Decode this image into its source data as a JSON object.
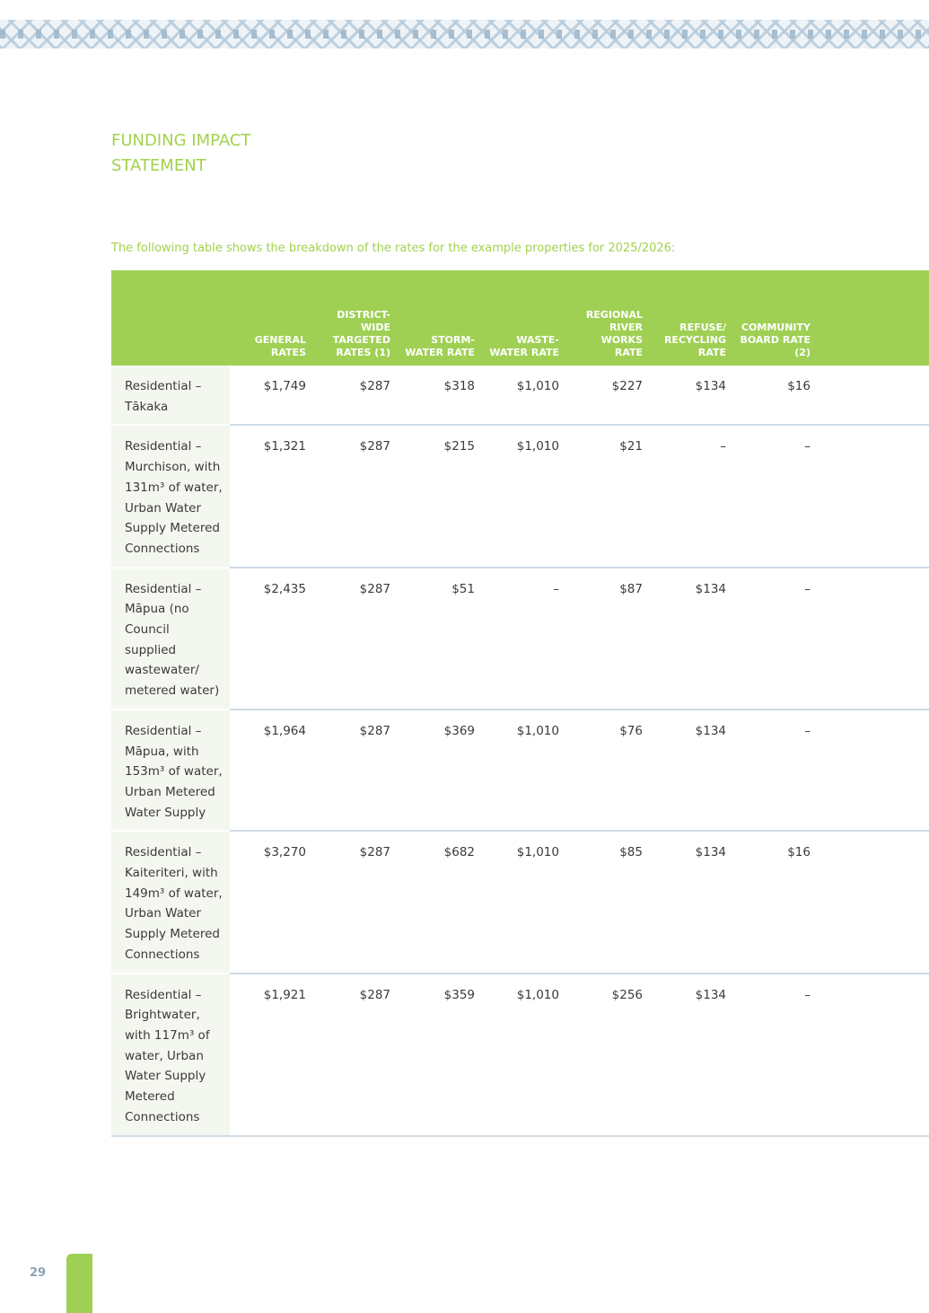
{
  "header": {
    "title_line1": "FUNDING IMPACT",
    "title_line2": "STATEMENT"
  },
  "intro": "The following table shows the breakdown of the rates for the example properties for 2025/2026:",
  "table": {
    "columns": [
      "GENERAL RATES",
      "DISTRICT-WIDE TARGETED RATES (1)",
      "STORM-WATER RATE",
      "WASTE-WATER RATE",
      "REGIONAL RIVER WORKS RATE",
      "REFUSE/ RECYCLING RATE",
      "COMMUNITY BOARD RATE (2)"
    ],
    "rows": [
      {
        "property": "Residential – Tākaka",
        "values": [
          "$1,749",
          "$287",
          "$318",
          "$1,010",
          "$227",
          "$134",
          "$16"
        ]
      },
      {
        "property": "Residential – Murchison, with 131m³ of water, Urban Water Supply Metered Connections",
        "values": [
          "$1,321",
          "$287",
          "$215",
          "$1,010",
          "$21",
          "–",
          "–"
        ]
      },
      {
        "property": "Residential – Māpua (no Council supplied wastewater/ metered water)",
        "values": [
          "$2,435",
          "$287",
          "$51",
          "–",
          "$87",
          "$134",
          "–"
        ]
      },
      {
        "property": "Residential – Māpua, with 153m³ of water, Urban Metered Water Supply",
        "values": [
          "$1,964",
          "$287",
          "$369",
          "$1,010",
          "$76",
          "$134",
          "–"
        ]
      },
      {
        "property": "Residential – Kaiteriteri, with 149m³ of water, Urban Water Supply Metered Connections",
        "values": [
          "$3,270",
          "$287",
          "$682",
          "$1,010",
          "$85",
          "$134",
          "$16"
        ]
      },
      {
        "property": "Residential – Brightwater, with 117m³ of water, Urban Water Supply Metered Connections",
        "values": [
          "$1,921",
          "$287",
          "$359",
          "$1,010",
          "$256",
          "$134",
          "–"
        ]
      }
    ]
  },
  "footer": {
    "page_number": "29"
  },
  "colors": {
    "accent_green": "#9fd054",
    "title_green": "#a2d24b",
    "pattern_blue": "#b8ccdc"
  }
}
